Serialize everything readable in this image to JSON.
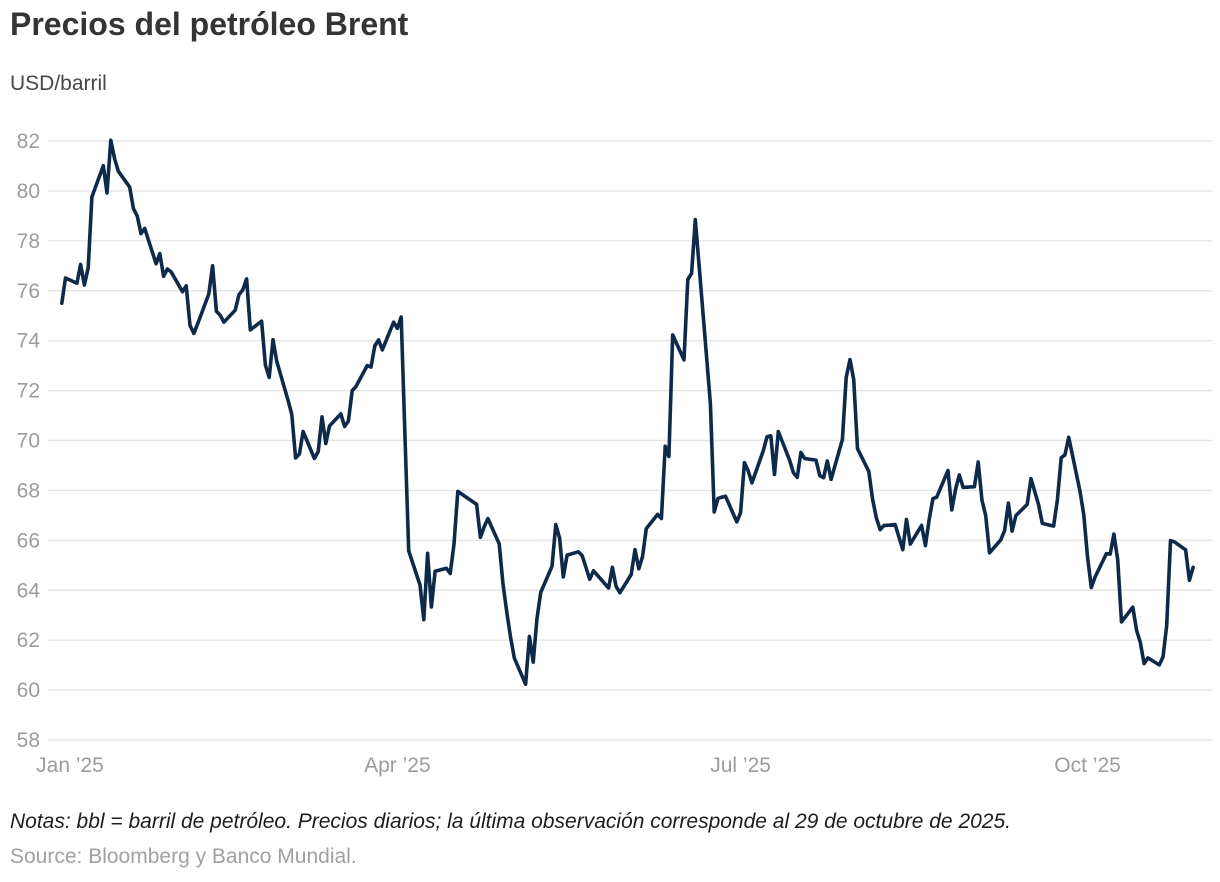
{
  "header": {
    "title": "Precios del petróleo Brent",
    "subtitle": "USD/barril"
  },
  "footer": {
    "notes": "Notas: bbl = barril de petróleo. Precios diarios; la última observación corresponde al 29 de octubre de 2025.",
    "source": "Source: Bloomberg y Banco Mundial."
  },
  "colors": {
    "line": "#0d2a4a",
    "grid": "#e5e5e5",
    "axis_text": "#9c9c9c",
    "title_text": "#343434",
    "notes_text": "#1d1d1d",
    "source_text": "#a1a1a1",
    "background": "#ffffff"
  },
  "chart_data": {
    "type": "line",
    "title": "Precios del petróleo Brent",
    "ylabel": "USD/barril",
    "xlabel": "",
    "grid": true,
    "legend_position": "none",
    "y_axis": {
      "min": 58,
      "max": 82,
      "step": 2
    },
    "x_axis": {
      "unit": "days since 2025-01-01",
      "range": [
        0,
        306
      ],
      "ticks": [
        {
          "day": 0,
          "label": "Jan ’25"
        },
        {
          "day": 90,
          "label": "Apr ’25"
        },
        {
          "day": 181,
          "label": "Jul ’25"
        },
        {
          "day": 273,
          "label": "Oct ’25"
        }
      ]
    },
    "series": [
      {
        "name": "Brent (USD/barril)",
        "points": [
          [
            1,
            75.5
          ],
          [
            2,
            76.51
          ],
          [
            5,
            76.3
          ],
          [
            6,
            77.05
          ],
          [
            7,
            76.23
          ],
          [
            8,
            76.92
          ],
          [
            9,
            79.76
          ],
          [
            12,
            81.01
          ],
          [
            13,
            79.92
          ],
          [
            14,
            82.03
          ],
          [
            15,
            81.29
          ],
          [
            16,
            80.79
          ],
          [
            19,
            80.15
          ],
          [
            20,
            79.29
          ],
          [
            21,
            79.0
          ],
          [
            22,
            78.29
          ],
          [
            23,
            78.5
          ],
          [
            26,
            77.08
          ],
          [
            27,
            77.49
          ],
          [
            28,
            76.58
          ],
          [
            29,
            76.87
          ],
          [
            30,
            76.76
          ],
          [
            33,
            75.96
          ],
          [
            34,
            76.2
          ],
          [
            35,
            74.61
          ],
          [
            36,
            74.29
          ],
          [
            37,
            74.66
          ],
          [
            40,
            75.87
          ],
          [
            41,
            77.0
          ],
          [
            42,
            75.18
          ],
          [
            43,
            75.02
          ],
          [
            44,
            74.74
          ],
          [
            47,
            75.22
          ],
          [
            48,
            75.84
          ],
          [
            49,
            76.04
          ],
          [
            50,
            76.48
          ],
          [
            51,
            74.43
          ],
          [
            54,
            74.78
          ],
          [
            55,
            73.02
          ],
          [
            56,
            72.53
          ],
          [
            57,
            74.04
          ],
          [
            58,
            73.18
          ],
          [
            61,
            71.62
          ],
          [
            62,
            71.04
          ],
          [
            63,
            69.3
          ],
          [
            64,
            69.46
          ],
          [
            65,
            70.36
          ],
          [
            68,
            69.28
          ],
          [
            69,
            69.56
          ],
          [
            70,
            70.95
          ],
          [
            71,
            69.88
          ],
          [
            72,
            70.58
          ],
          [
            75,
            71.07
          ],
          [
            76,
            70.56
          ],
          [
            77,
            70.78
          ],
          [
            78,
            72.0
          ],
          [
            79,
            72.16
          ],
          [
            82,
            73.0
          ],
          [
            83,
            72.94
          ],
          [
            84,
            73.79
          ],
          [
            85,
            74.03
          ],
          [
            86,
            73.63
          ],
          [
            89,
            74.74
          ],
          [
            90,
            74.49
          ],
          [
            91,
            74.95
          ],
          [
            92,
            70.14
          ],
          [
            93,
            65.58
          ],
          [
            96,
            64.21
          ],
          [
            97,
            62.82
          ],
          [
            98,
            65.48
          ],
          [
            99,
            63.33
          ],
          [
            100,
            64.76
          ],
          [
            103,
            64.88
          ],
          [
            104,
            64.67
          ],
          [
            105,
            65.85
          ],
          [
            106,
            67.96
          ],
          [
            111,
            67.44
          ],
          [
            112,
            66.12
          ],
          [
            113,
            66.55
          ],
          [
            114,
            66.87
          ],
          [
            117,
            65.86
          ],
          [
            118,
            64.25
          ],
          [
            119,
            63.12
          ],
          [
            120,
            62.13
          ],
          [
            121,
            61.29
          ],
          [
            124,
            60.23
          ],
          [
            125,
            62.15
          ],
          [
            126,
            61.12
          ],
          [
            127,
            62.84
          ],
          [
            128,
            63.91
          ],
          [
            131,
            64.96
          ],
          [
            132,
            66.63
          ],
          [
            133,
            66.09
          ],
          [
            134,
            64.53
          ],
          [
            135,
            65.41
          ],
          [
            138,
            65.54
          ],
          [
            139,
            65.38
          ],
          [
            140,
            64.91
          ],
          [
            141,
            64.44
          ],
          [
            142,
            64.78
          ],
          [
            146,
            64.09
          ],
          [
            147,
            64.92
          ],
          [
            148,
            64.15
          ],
          [
            149,
            63.9
          ],
          [
            152,
            64.63
          ],
          [
            153,
            65.63
          ],
          [
            154,
            64.86
          ],
          [
            155,
            65.34
          ],
          [
            156,
            66.47
          ],
          [
            159,
            67.04
          ],
          [
            160,
            66.87
          ],
          [
            161,
            69.77
          ],
          [
            162,
            69.36
          ],
          [
            163,
            74.23
          ],
          [
            166,
            73.23
          ],
          [
            167,
            76.45
          ],
          [
            168,
            76.7
          ],
          [
            169,
            78.85
          ],
          [
            170,
            77.01
          ],
          [
            173,
            71.48
          ],
          [
            174,
            67.14
          ],
          [
            175,
            67.68
          ],
          [
            176,
            67.73
          ],
          [
            177,
            67.77
          ],
          [
            180,
            66.74
          ],
          [
            181,
            67.11
          ],
          [
            182,
            69.11
          ],
          [
            183,
            68.8
          ],
          [
            184,
            68.3
          ],
          [
            187,
            69.58
          ],
          [
            188,
            70.15
          ],
          [
            189,
            70.19
          ],
          [
            190,
            68.64
          ],
          [
            191,
            70.36
          ],
          [
            194,
            69.21
          ],
          [
            195,
            68.71
          ],
          [
            196,
            68.52
          ],
          [
            197,
            69.52
          ],
          [
            198,
            69.28
          ],
          [
            201,
            69.21
          ],
          [
            202,
            68.59
          ],
          [
            203,
            68.51
          ],
          [
            204,
            69.18
          ],
          [
            205,
            68.44
          ],
          [
            208,
            70.04
          ],
          [
            209,
            72.53
          ],
          [
            210,
            73.24
          ],
          [
            211,
            72.45
          ],
          [
            212,
            69.67
          ],
          [
            215,
            68.76
          ],
          [
            216,
            67.64
          ],
          [
            217,
            66.89
          ],
          [
            218,
            66.43
          ],
          [
            219,
            66.59
          ],
          [
            222,
            66.63
          ],
          [
            223,
            66.12
          ],
          [
            224,
            65.63
          ],
          [
            225,
            66.84
          ],
          [
            226,
            65.85
          ],
          [
            229,
            66.6
          ],
          [
            230,
            65.79
          ],
          [
            231,
            66.84
          ],
          [
            232,
            67.67
          ],
          [
            233,
            67.73
          ],
          [
            236,
            68.8
          ],
          [
            237,
            67.22
          ],
          [
            238,
            68.05
          ],
          [
            239,
            68.62
          ],
          [
            240,
            68.12
          ],
          [
            243,
            68.15
          ],
          [
            244,
            69.14
          ],
          [
            245,
            67.6
          ],
          [
            246,
            66.99
          ],
          [
            247,
            65.5
          ],
          [
            250,
            66.02
          ],
          [
            251,
            66.39
          ],
          [
            252,
            67.49
          ],
          [
            253,
            66.37
          ],
          [
            254,
            66.99
          ],
          [
            257,
            67.44
          ],
          [
            258,
            68.47
          ],
          [
            259,
            67.95
          ],
          [
            260,
            67.44
          ],
          [
            261,
            66.68
          ],
          [
            264,
            66.57
          ],
          [
            265,
            67.63
          ],
          [
            266,
            69.31
          ],
          [
            267,
            69.42
          ],
          [
            268,
            70.13
          ],
          [
            271,
            67.97
          ],
          [
            272,
            67.02
          ],
          [
            273,
            65.35
          ],
          [
            274,
            64.11
          ],
          [
            275,
            64.53
          ],
          [
            278,
            65.47
          ],
          [
            279,
            65.45
          ],
          [
            280,
            66.25
          ],
          [
            281,
            65.22
          ],
          [
            282,
            62.73
          ],
          [
            285,
            63.32
          ],
          [
            286,
            62.39
          ],
          [
            287,
            61.91
          ],
          [
            288,
            61.06
          ],
          [
            289,
            61.29
          ],
          [
            292,
            61.01
          ],
          [
            293,
            61.32
          ],
          [
            294,
            62.59
          ],
          [
            295,
            65.99
          ],
          [
            296,
            65.94
          ],
          [
            299,
            65.62
          ],
          [
            300,
            64.4
          ],
          [
            301,
            64.92
          ]
        ]
      }
    ]
  }
}
